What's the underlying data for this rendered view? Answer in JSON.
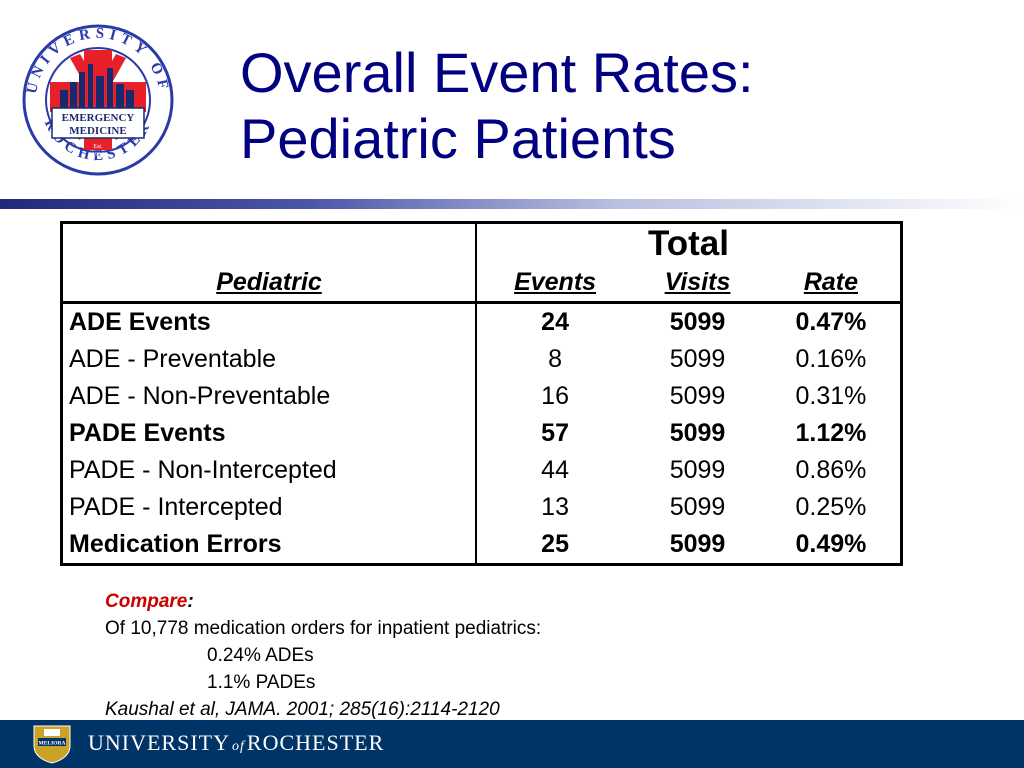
{
  "logo": {
    "ring_text": "UNIVERSITY OF ROCHESTER",
    "banner_line1": "EMERGENCY",
    "banner_line2": "MEDICINE",
    "est": "Est.",
    "year": "1994",
    "colors": {
      "ring": "#2a3aa8",
      "cross": "#e8202a",
      "skyline": "#1a2a6e"
    }
  },
  "title": {
    "line1": "Overall Event Rates:",
    "line2": "Pediatric Patients",
    "color": "#000080"
  },
  "table": {
    "group_header": "Total",
    "row_header": "Pediatric",
    "columns": [
      "Events",
      "Visits",
      "Rate"
    ],
    "rows": [
      {
        "label": "ADE Events",
        "events": "24",
        "visits": "5099",
        "rate": "0.47%",
        "bold": true
      },
      {
        "label": "ADE - Preventable",
        "events": "8",
        "visits": "5099",
        "rate": "0.16%",
        "bold": false
      },
      {
        "label": "ADE - Non-Preventable",
        "events": "16",
        "visits": "5099",
        "rate": "0.31%",
        "bold": false
      },
      {
        "label": "PADE Events",
        "events": "57",
        "visits": "5099",
        "rate": "1.12%",
        "bold": true
      },
      {
        "label": "PADE - Non-Intercepted",
        "events": "44",
        "visits": "5099",
        "rate": "0.86%",
        "bold": false
      },
      {
        "label": "PADE - Intercepted",
        "events": "13",
        "visits": "5099",
        "rate": "0.25%",
        "bold": false
      },
      {
        "label": "Medication Errors",
        "events": "25",
        "visits": "5099",
        "rate": "0.49%",
        "bold": true
      }
    ]
  },
  "note": {
    "compare": "Compare",
    "colon": ":",
    "line1": "Of 10,778 medication orders for inpatient pediatrics:",
    "line2": "0.24% ADEs",
    "line3": "1.1% PADEs",
    "citation": "Kaushal et al, JAMA. 2001; 285(16):2114-2120",
    "compare_color": "#cc0000"
  },
  "footer": {
    "university_part1": "UNIVERSITY",
    "of": "of",
    "university_part2": "ROCHESTER",
    "seal_text": "MELIORA",
    "background": "#003366"
  }
}
